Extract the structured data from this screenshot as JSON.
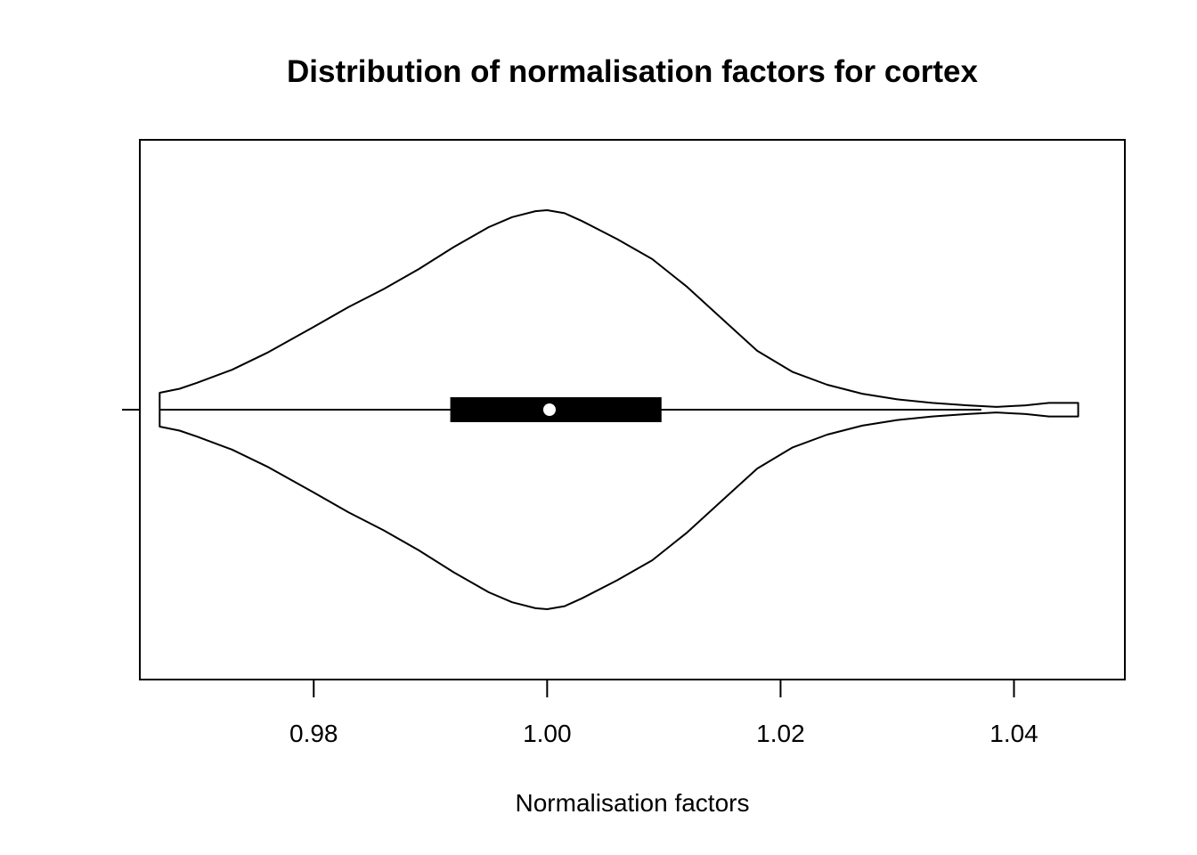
{
  "chart_data": {
    "type": "violin",
    "orientation": "horizontal",
    "title": "Distribution of normalisation factors for cortex",
    "xlabel": "Normalisation factors",
    "ylabel": "",
    "xlim": [
      0.9651,
      1.0495
    ],
    "xticks": [
      0.98,
      1.0,
      1.02,
      1.04
    ],
    "xtick_labels": [
      "0.98",
      "1.00",
      "1.02",
      "1.04"
    ],
    "grid": false,
    "colors": {
      "outline": "#000000",
      "box": "#000000",
      "median_dot": "#ffffff",
      "background": "#ffffff"
    },
    "violin": {
      "min": 0.9668,
      "max": 1.0455,
      "q1": 0.9917,
      "median": 1.0002,
      "q3": 1.0098,
      "whisker_low": 0.9668,
      "whisker_high": 1.0372,
      "density": {
        "x": [
          0.9668,
          0.9685,
          0.97,
          0.973,
          0.976,
          0.98,
          0.983,
          0.986,
          0.989,
          0.992,
          0.995,
          0.997,
          0.999,
          1.0,
          1.0015,
          1.003,
          1.006,
          1.009,
          1.012,
          1.015,
          1.018,
          1.021,
          1.024,
          1.027,
          1.03,
          1.033,
          1.036,
          1.0385,
          1.041,
          1.043,
          1.0455
        ],
        "width": [
          0.085,
          0.105,
          0.135,
          0.2,
          0.285,
          0.415,
          0.515,
          0.605,
          0.705,
          0.815,
          0.915,
          0.965,
          0.995,
          1.0,
          0.985,
          0.945,
          0.855,
          0.755,
          0.615,
          0.455,
          0.295,
          0.19,
          0.125,
          0.08,
          0.052,
          0.034,
          0.022,
          0.014,
          0.022,
          0.034,
          0.034
        ]
      }
    }
  }
}
